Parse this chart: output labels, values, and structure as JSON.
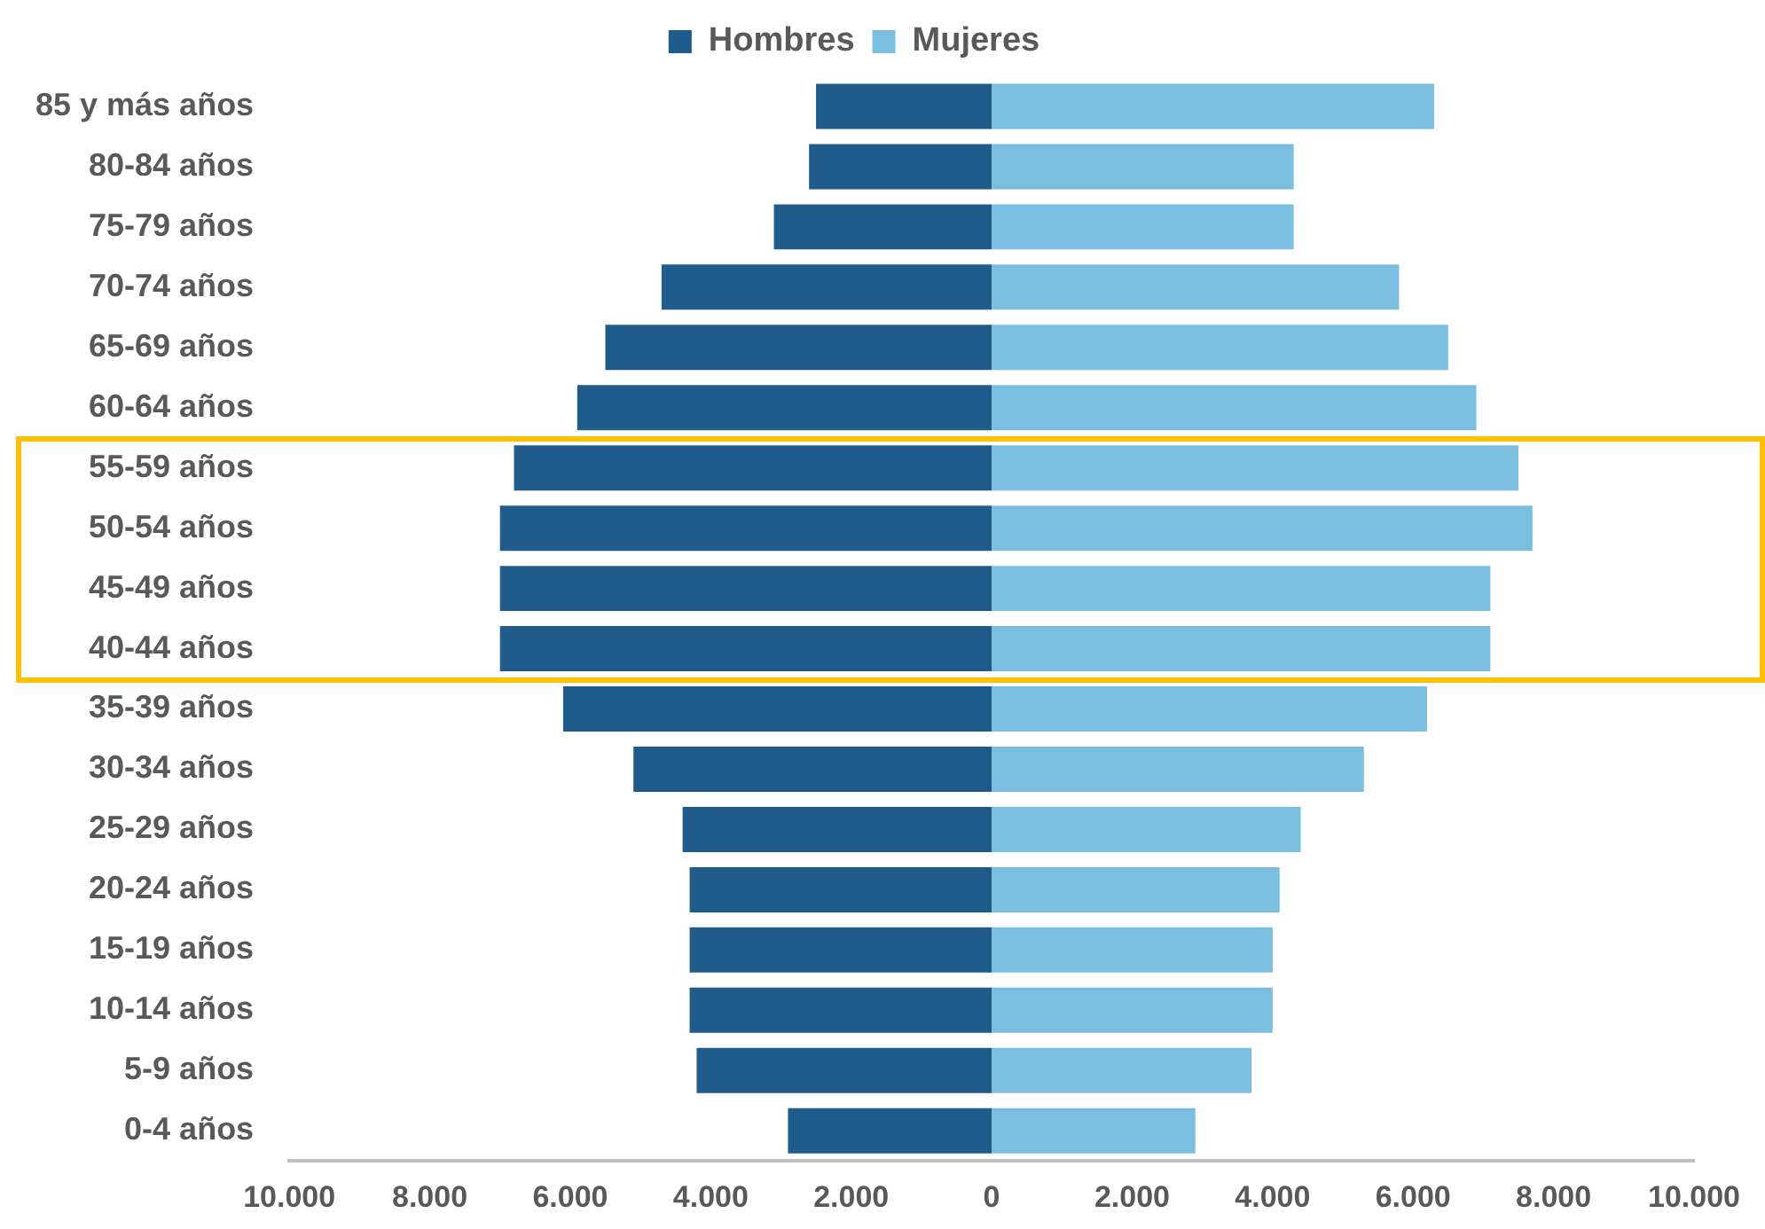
{
  "chart_data": {
    "type": "bar",
    "orientation": "horizontal",
    "stacked": true,
    "legend": "top",
    "grid": false,
    "categories": [
      "85 y más años",
      "80-84 años",
      "75-79 años",
      "70-74 años",
      "65-69 años",
      "60-64 años",
      "55-59 años",
      "50-54 años",
      "45-49 años",
      "40-44 años",
      "35-39 años",
      "30-34 años",
      "25-29 años",
      "20-24 años",
      "15-19 años",
      "10-14 años",
      "5-9 años",
      "0-4 años"
    ],
    "series": [
      {
        "name": "Hombres",
        "color": "#1f5c8b",
        "values": [
          -2500,
          -2600,
          -3100,
          -4700,
          -5500,
          -5900,
          -6800,
          -7000,
          -7000,
          -7000,
          -6100,
          -5100,
          -4400,
          -4300,
          -4300,
          -4300,
          -4200,
          -2900
        ]
      },
      {
        "name": "Mujeres",
        "color": "#7bbfe0",
        "values": [
          6300,
          4300,
          4300,
          5800,
          6500,
          6900,
          7500,
          7700,
          7100,
          7100,
          6200,
          5300,
          4400,
          4100,
          4000,
          4000,
          3700,
          2900
        ]
      }
    ],
    "xlim": [
      -10000,
      10000
    ],
    "xticks": [
      {
        "value": -10000,
        "label": "10.000"
      },
      {
        "value": -8000,
        "label": "8.000"
      },
      {
        "value": -6000,
        "label": "6.000"
      },
      {
        "value": -4000,
        "label": "4.000"
      },
      {
        "value": -2000,
        "label": "2.000"
      },
      0,
      {
        "value": 2000,
        "label": "2.000"
      },
      {
        "value": 4000,
        "label": "4.000"
      },
      {
        "value": 6000,
        "label": "6.000"
      },
      {
        "value": 8000,
        "label": "8.000"
      },
      {
        "value": 10000,
        "label": "10.000"
      }
    ]
  }
}
